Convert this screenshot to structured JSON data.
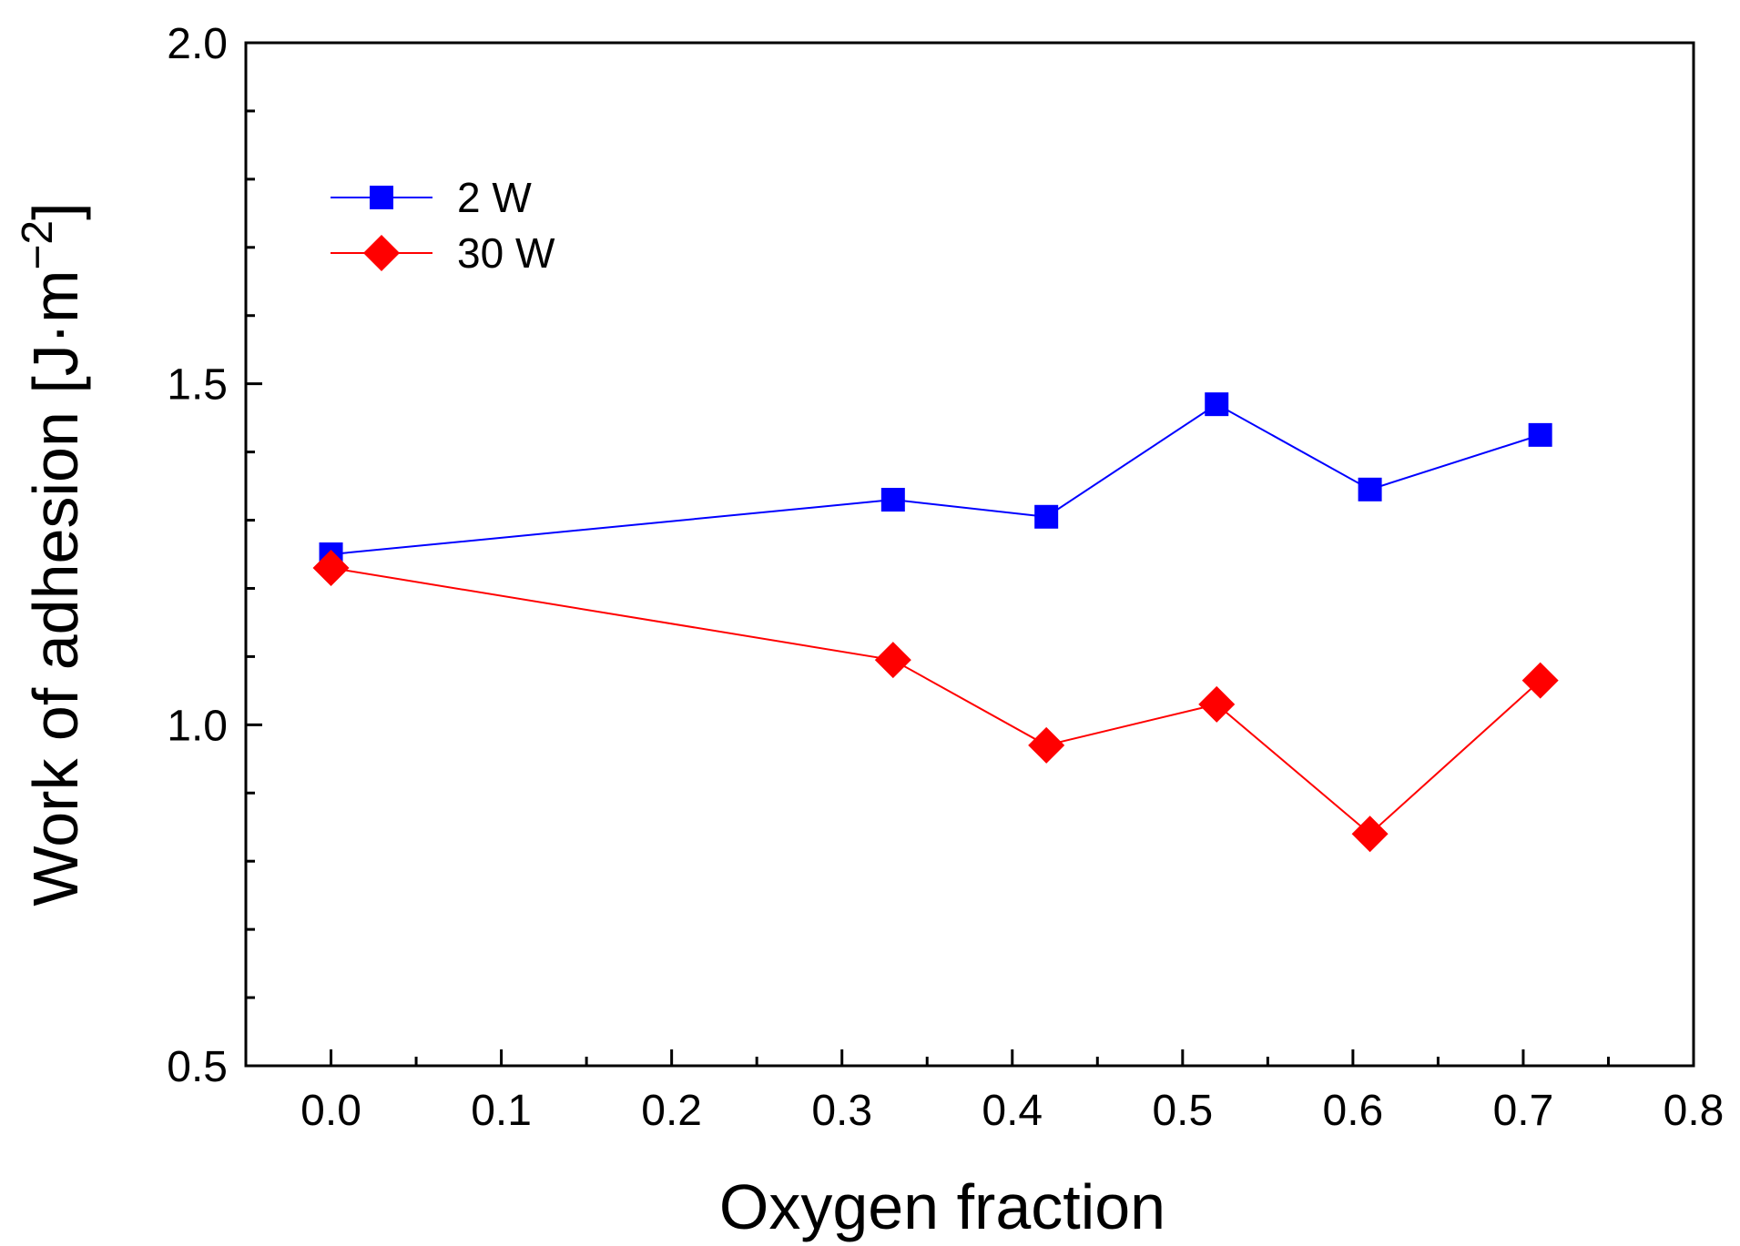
{
  "chart_data": {
    "type": "line",
    "title": "",
    "xlabel": "Oxygen fraction",
    "ylabel_prefix": "Work of adhesion [J·m",
    "ylabel_superscript": "−2",
    "ylabel_suffix": "]",
    "xlim": [
      -0.05,
      0.8
    ],
    "ylim": [
      0.5,
      2.0
    ],
    "xticks": [
      0.0,
      0.1,
      0.2,
      0.3,
      0.4,
      0.5,
      0.6,
      0.7,
      0.8
    ],
    "xtick_labels": [
      "0.0",
      "0.1",
      "0.2",
      "0.3",
      "0.4",
      "0.5",
      "0.6",
      "0.7",
      "0.8"
    ],
    "yticks": [
      0.5,
      1.0,
      1.5,
      2.0
    ],
    "ytick_labels": [
      "0.5",
      "1.0",
      "1.5",
      "2.0"
    ],
    "grid": false,
    "legend_position": "top-left",
    "series": [
      {
        "name": "2 W",
        "color": "#0000ff",
        "marker": "square",
        "x": [
          0.0,
          0.33,
          0.42,
          0.52,
          0.61,
          0.71
        ],
        "y": [
          1.25,
          1.33,
          1.305,
          1.47,
          1.345,
          1.425
        ]
      },
      {
        "name": "30 W",
        "color": "#ff0000",
        "marker": "diamond",
        "x": [
          0.0,
          0.33,
          0.42,
          0.52,
          0.61,
          0.71
        ],
        "y": [
          1.23,
          1.095,
          0.97,
          1.03,
          0.84,
          1.065
        ]
      }
    ]
  }
}
